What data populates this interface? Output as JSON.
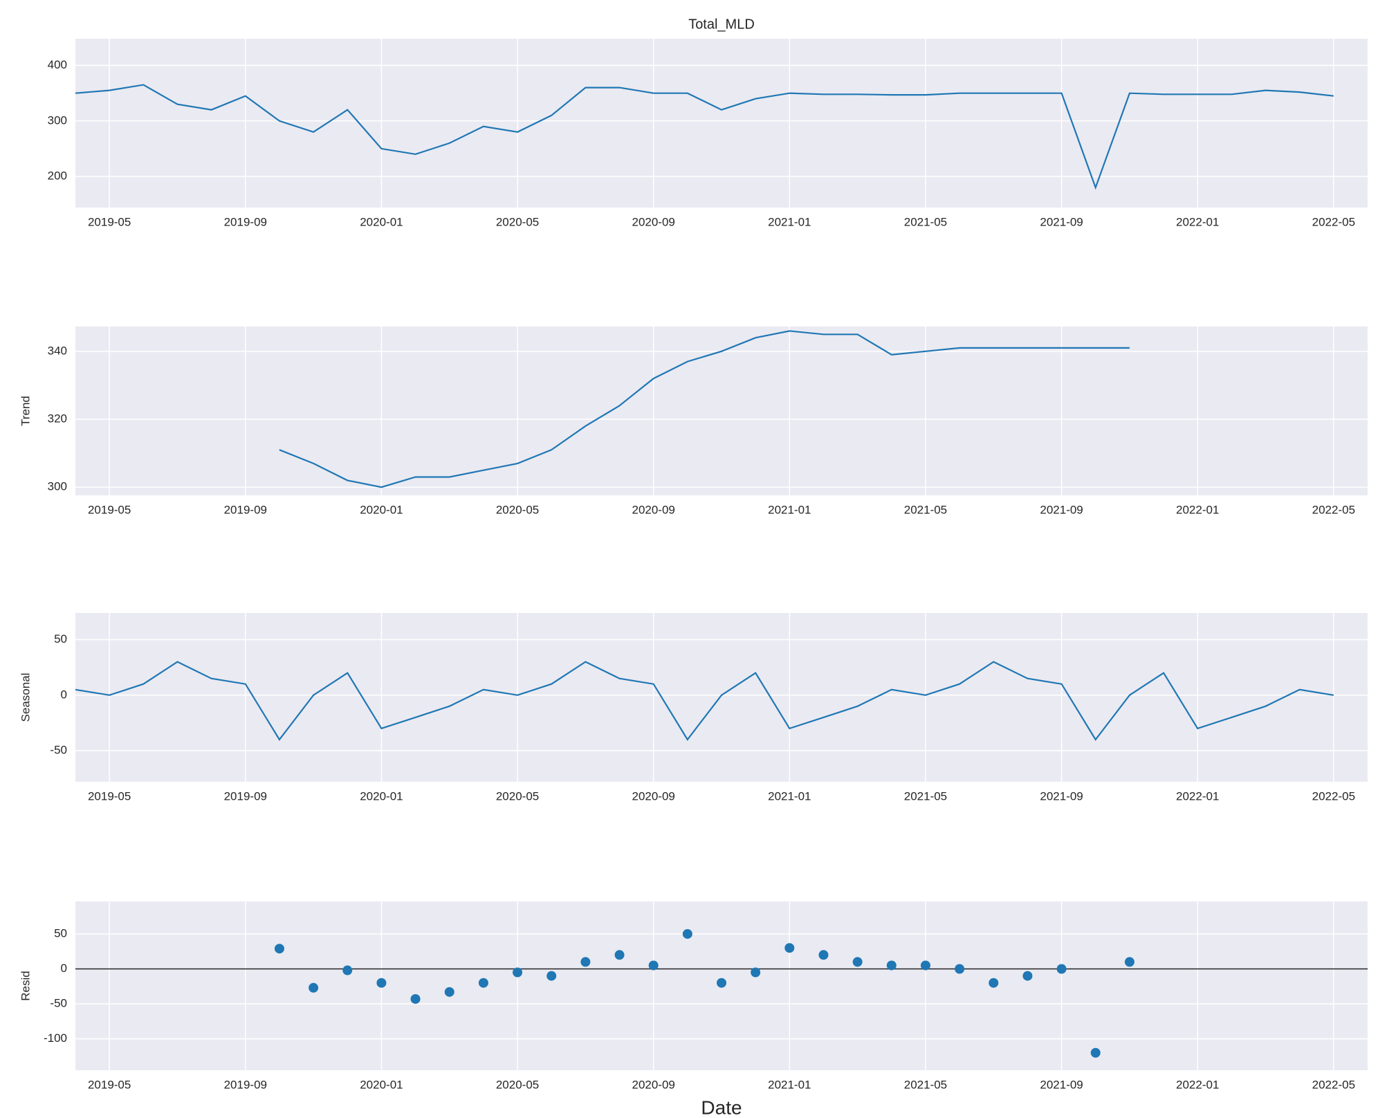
{
  "chart_data": [
    {
      "type": "line",
      "title": "Total_MLD",
      "color": "#1f77b4",
      "grid": true,
      "x": [
        "2019-04",
        "2019-05",
        "2019-06",
        "2019-07",
        "2019-08",
        "2019-09",
        "2019-10",
        "2019-11",
        "2019-12",
        "2020-01",
        "2020-02",
        "2020-03",
        "2020-04",
        "2020-05",
        "2020-06",
        "2020-07",
        "2020-08",
        "2020-09",
        "2020-10",
        "2020-11",
        "2020-12",
        "2021-01",
        "2021-02",
        "2021-03",
        "2021-04",
        "2021-05",
        "2021-06",
        "2021-07",
        "2021-08",
        "2021-09",
        "2021-10",
        "2021-11",
        "2021-12",
        "2022-01",
        "2022-02",
        "2022-03",
        "2022-04",
        "2022-05"
      ],
      "values": [
        350,
        355,
        365,
        330,
        320,
        345,
        300,
        280,
        320,
        250,
        240,
        260,
        290,
        280,
        310,
        360,
        360,
        350,
        350,
        320,
        340,
        350,
        348,
        348,
        347,
        347,
        350,
        350,
        350,
        350,
        180,
        350,
        348,
        348,
        348,
        355,
        352,
        345
      ],
      "xlim": [
        "2019-04",
        "2022-06"
      ],
      "xticks": [
        "2019-05",
        "2019-09",
        "2020-01",
        "2020-05",
        "2020-09",
        "2021-01",
        "2021-05",
        "2021-09",
        "2022-01",
        "2022-05"
      ],
      "ylim": [
        144,
        448
      ],
      "yticks": [
        200,
        300,
        400
      ]
    },
    {
      "type": "line",
      "ylabel": "Trend",
      "color": "#1f77b4",
      "grid": true,
      "x": [
        "2019-04",
        "2019-05",
        "2019-06",
        "2019-07",
        "2019-08",
        "2019-09",
        "2019-10",
        "2019-11",
        "2019-12",
        "2020-01",
        "2020-02",
        "2020-03",
        "2020-04",
        "2020-05",
        "2020-06",
        "2020-07",
        "2020-08",
        "2020-09",
        "2020-10",
        "2020-11",
        "2020-12",
        "2021-01",
        "2021-02",
        "2021-03",
        "2021-04",
        "2021-05",
        "2021-06",
        "2021-07",
        "2021-08",
        "2021-09",
        "2021-10",
        "2021-11",
        "2021-12",
        "2022-01",
        "2022-02",
        "2022-03",
        "2022-04",
        "2022-05"
      ],
      "values": [
        null,
        null,
        null,
        null,
        null,
        null,
        311,
        307,
        302,
        300,
        303,
        303,
        305,
        307,
        311,
        318,
        324,
        332,
        337,
        340,
        344,
        346,
        345,
        345,
        339,
        340,
        341,
        341,
        341,
        341,
        341,
        341,
        null,
        null,
        null,
        null,
        null,
        null
      ],
      "xlim": [
        "2019-04",
        "2022-06"
      ],
      "xticks": [
        "2019-05",
        "2019-09",
        "2020-01",
        "2020-05",
        "2020-09",
        "2021-01",
        "2021-05",
        "2021-09",
        "2022-01",
        "2022-05"
      ],
      "ylim": [
        297.6,
        347.3
      ],
      "yticks": [
        300,
        320,
        340
      ]
    },
    {
      "type": "line",
      "ylabel": "Seasonal",
      "color": "#1f77b4",
      "grid": true,
      "x": [
        "2019-04",
        "2019-05",
        "2019-06",
        "2019-07",
        "2019-08",
        "2019-09",
        "2019-10",
        "2019-11",
        "2019-12",
        "2020-01",
        "2020-02",
        "2020-03",
        "2020-04",
        "2020-05",
        "2020-06",
        "2020-07",
        "2020-08",
        "2020-09",
        "2020-10",
        "2020-11",
        "2020-12",
        "2021-01",
        "2021-02",
        "2021-03",
        "2021-04",
        "2021-05",
        "2021-06",
        "2021-07",
        "2021-08",
        "2021-09",
        "2021-10",
        "2021-11",
        "2021-12",
        "2022-01",
        "2022-02",
        "2022-03",
        "2022-04",
        "2022-05"
      ],
      "values": [
        5,
        0,
        10,
        30,
        15,
        10,
        -40,
        0,
        20,
        -30,
        -20,
        -10,
        5,
        0,
        10,
        30,
        15,
        10,
        -40,
        0,
        20,
        -30,
        -20,
        -10,
        5,
        0,
        10,
        30,
        15,
        10,
        -40,
        0,
        20,
        -30,
        -20,
        -10,
        5,
        0
      ],
      "xlim": [
        "2019-04",
        "2022-06"
      ],
      "xticks": [
        "2019-05",
        "2019-09",
        "2020-01",
        "2020-05",
        "2020-09",
        "2021-01",
        "2021-05",
        "2021-09",
        "2022-01",
        "2022-05"
      ],
      "ylim": [
        -78,
        74
      ],
      "yticks": [
        -50,
        0,
        50
      ]
    },
    {
      "type": "scatter",
      "ylabel": "Resid",
      "xlabel": "Date",
      "color": "#1f77b4",
      "grid": true,
      "hline": 0,
      "x": [
        "2019-04",
        "2019-05",
        "2019-06",
        "2019-07",
        "2019-08",
        "2019-09",
        "2019-10",
        "2019-11",
        "2019-12",
        "2020-01",
        "2020-02",
        "2020-03",
        "2020-04",
        "2020-05",
        "2020-06",
        "2020-07",
        "2020-08",
        "2020-09",
        "2020-10",
        "2020-11",
        "2020-12",
        "2021-01",
        "2021-02",
        "2021-03",
        "2021-04",
        "2021-05",
        "2021-06",
        "2021-07",
        "2021-08",
        "2021-09",
        "2021-10",
        "2021-11",
        "2021-12",
        "2022-01",
        "2022-02",
        "2022-03",
        "2022-04",
        "2022-05"
      ],
      "values": [
        null,
        null,
        null,
        null,
        null,
        null,
        29,
        -27,
        -2,
        -20,
        -43,
        -33,
        -20,
        -5,
        -10,
        10,
        20,
        5,
        50,
        -20,
        -5,
        30,
        20,
        10,
        5,
        5,
        0,
        -20,
        -10,
        0,
        -120,
        10,
        null,
        null,
        null,
        null,
        null,
        null
      ],
      "xlim": [
        "2019-04",
        "2022-06"
      ],
      "xticks": [
        "2019-05",
        "2019-09",
        "2020-01",
        "2020-05",
        "2020-09",
        "2021-01",
        "2021-05",
        "2021-09",
        "2022-01",
        "2022-05"
      ],
      "ylim": [
        -145,
        96.5
      ],
      "yticks": [
        -100,
        -50,
        0,
        50
      ]
    }
  ]
}
